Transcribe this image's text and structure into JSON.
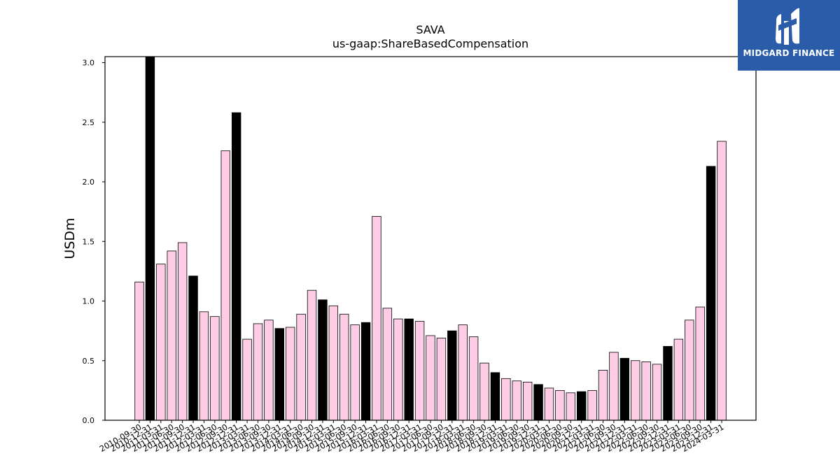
{
  "chart_data": {
    "type": "bar",
    "title": "SAVA",
    "subtitle": "us-gaap:ShareBasedCompensation",
    "xlabel": "",
    "ylabel": "USDm",
    "ylim": [
      0,
      3.05
    ],
    "yticks": [
      "0.0",
      "0.5",
      "1.0",
      "1.5",
      "2.0",
      "2.5",
      "3.0"
    ],
    "categories": [
      "2010-09-30",
      "2010-12-31",
      "2011-03-31",
      "2011-06-30",
      "2011-09-30",
      "2011-12-31",
      "2012-03-31",
      "2012-06-30",
      "2012-09-30",
      "2012-12-31",
      "2013-03-31",
      "2013-06-30",
      "2013-09-30",
      "2013-12-31",
      "2014-03-31",
      "2014-06-30",
      "2014-09-30",
      "2014-12-31",
      "2015-03-31",
      "2015-06-30",
      "2015-09-30",
      "2015-12-31",
      "2016-03-31",
      "2016-06-30",
      "2016-09-30",
      "2016-12-31",
      "2017-03-31",
      "2017-06-30",
      "2017-09-30",
      "2017-12-31",
      "2018-03-31",
      "2018-06-30",
      "2018-09-30",
      "2018-12-31",
      "2019-03-31",
      "2019-06-30",
      "2019-09-30",
      "2019-12-31",
      "2020-03-31",
      "2020-06-30",
      "2020-09-30",
      "2020-12-31",
      "2021-03-31",
      "2021-06-30",
      "2021-09-30",
      "2021-12-31",
      "2022-03-31",
      "2022-06-30",
      "2022-09-30",
      "2022-12-31",
      "2023-03-31",
      "2023-06-30",
      "2023-09-30",
      "2023-12-31",
      "2024-03-31"
    ],
    "values": [
      1.16,
      3.05,
      1.31,
      1.42,
      1.49,
      1.21,
      0.91,
      0.87,
      2.26,
      2.58,
      0.68,
      0.81,
      0.84,
      0.77,
      0.78,
      0.89,
      1.09,
      1.01,
      0.96,
      0.89,
      0.8,
      0.82,
      1.71,
      0.94,
      0.85,
      0.85,
      0.83,
      0.71,
      0.69,
      0.75,
      0.8,
      0.7,
      0.48,
      0.4,
      0.35,
      0.33,
      0.32,
      0.3,
      0.27,
      0.25,
      0.23,
      0.24,
      0.25,
      0.42,
      0.57,
      0.52,
      0.5,
      0.49,
      0.47,
      0.62,
      0.68,
      0.84,
      0.95,
      2.13,
      2.34
    ],
    "highlighted": [
      false,
      true,
      false,
      false,
      false,
      true,
      false,
      false,
      false,
      true,
      false,
      false,
      false,
      true,
      false,
      false,
      false,
      true,
      false,
      false,
      false,
      true,
      false,
      false,
      false,
      true,
      false,
      false,
      false,
      true,
      false,
      false,
      false,
      true,
      false,
      false,
      false,
      true,
      false,
      false,
      false,
      true,
      false,
      false,
      false,
      true,
      false,
      false,
      false,
      true,
      false,
      false,
      false,
      true,
      false
    ],
    "colors": {
      "bar": "#ffcce6",
      "highlight": "#000000",
      "edge": "#000000"
    }
  },
  "logo": {
    "text": "MIDGARD FINANCE",
    "background": "#2a5caa"
  }
}
